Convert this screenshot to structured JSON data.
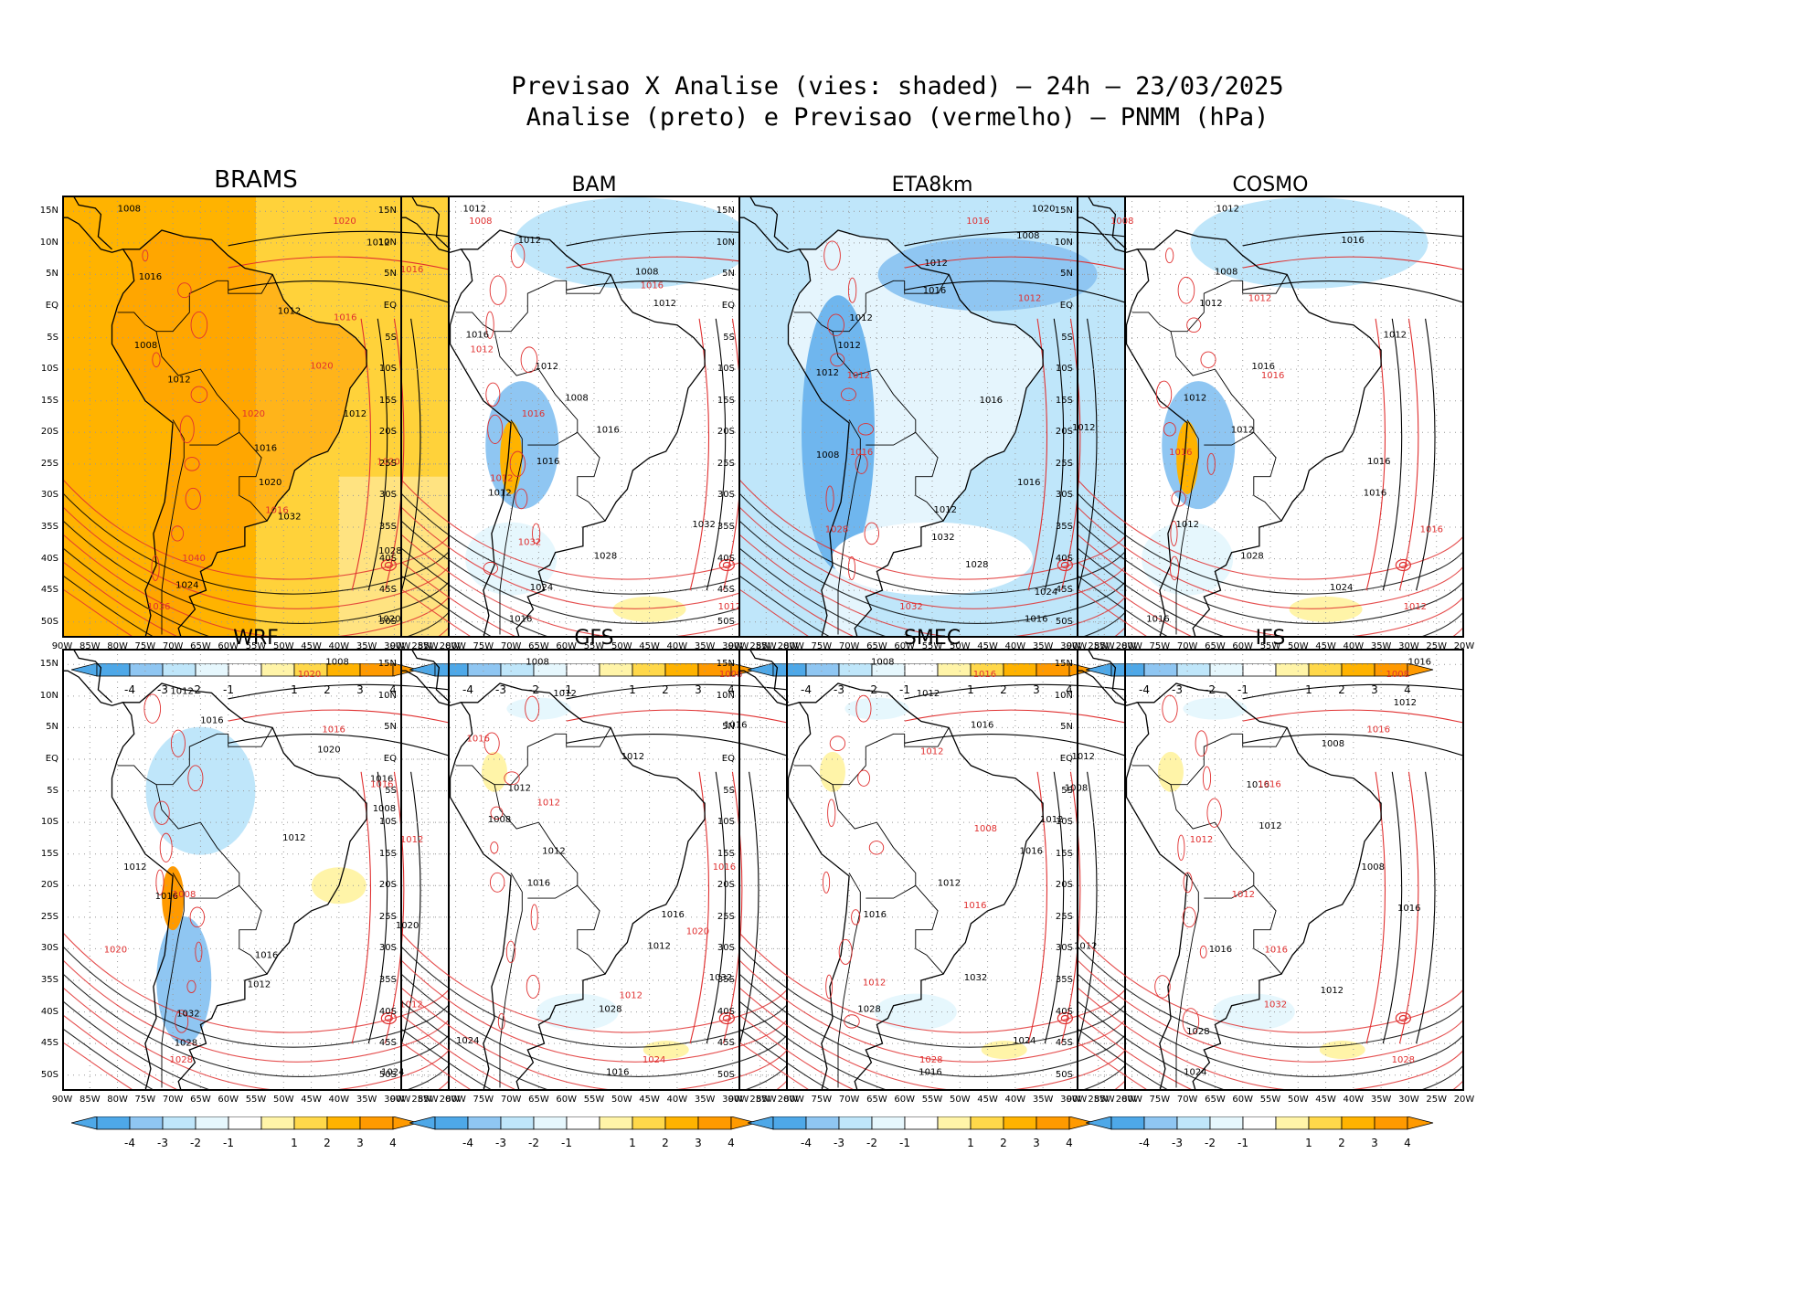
{
  "figure": {
    "title_line1": "Previsao X Analise (vies: shaded) – 24h – 23/03/2025",
    "title_line2": "Analise (preto) e Previsao (vermelho) – PNMM (hPa)"
  },
  "axes": {
    "lat_labels": [
      "15N",
      "10N",
      "5N",
      "EQ",
      "5S",
      "10S",
      "15S",
      "20S",
      "25S",
      "30S",
      "35S",
      "40S",
      "45S",
      "50S"
    ],
    "lon_labels": [
      "90W",
      "85W",
      "80W",
      "75W",
      "70W",
      "65W",
      "60W",
      "55W",
      "50W",
      "45W",
      "40W",
      "35W",
      "30W",
      "25W",
      "20W"
    ]
  },
  "colorbar": {
    "labels": [
      "-4",
      "-3",
      "-2",
      "-1",
      "1",
      "2",
      "3",
      "4"
    ],
    "colors": [
      "#4ea8e8",
      "#8fc6f2",
      "#bfe6fa",
      "#e6f7fd",
      "#ffffff",
      "#fff4a8",
      "#ffd84a",
      "#ffb300",
      "#ff9a00"
    ]
  },
  "colors": {
    "analysis": "#000000",
    "forecast": "#e03030",
    "background": "#ffffff"
  },
  "panels": [
    {
      "name": "BRAMS",
      "bias": "warm",
      "labels_black": [
        "1008",
        "1012",
        "1016",
        "1012",
        "1008",
        "1012",
        "1012",
        "1016",
        "1020",
        "1032",
        "1028",
        "1024",
        "1020"
      ],
      "labels_red": [
        "1020",
        "1016",
        "1016",
        "1020",
        "1020",
        "1020",
        "1016",
        "1040",
        "1036"
      ]
    },
    {
      "name": "BAM",
      "bias": "cool",
      "labels_black": [
        "1012",
        "1012",
        "1008",
        "1012",
        "1016",
        "1012",
        "1008",
        "1016",
        "1016",
        "1012",
        "1032",
        "1028",
        "1024",
        "1016"
      ],
      "labels_red": [
        "1008",
        "1016",
        "1012",
        "1016",
        "1012",
        "1032",
        "1012"
      ]
    },
    {
      "name": "ETA8km",
      "bias": "strong-cool",
      "labels_black": [
        "1020",
        "1008",
        "1012",
        "1016",
        "1012",
        "1012",
        "1012",
        "1016",
        "1012",
        "1008",
        "1016",
        "1012",
        "1032",
        "1028",
        "1024",
        "1016"
      ],
      "labels_red": [
        "1016",
        "1012",
        "1012",
        "1016",
        "1028",
        "1032"
      ]
    },
    {
      "name": "COSMO",
      "bias": "cool",
      "labels_black": [
        "1012",
        "1016",
        "1008",
        "1012",
        "1012",
        "1016",
        "1012",
        "1012",
        "1016",
        "1016",
        "1012",
        "1028",
        "1024",
        "1016"
      ],
      "labels_red": [
        "1008",
        "1012",
        "1016",
        "1016",
        "1016",
        "1012"
      ]
    },
    {
      "name": "WRF",
      "bias": "mixed",
      "labels_black": [
        "1008",
        "1012",
        "1016",
        "1020",
        "1016",
        "1008",
        "1012",
        "1012",
        "1016",
        "1020",
        "1016",
        "1012",
        "1032",
        "1028",
        "1024"
      ],
      "labels_red": [
        "1020",
        "1016",
        "1016",
        "1012",
        "1008",
        "1020",
        "1012",
        "1028"
      ]
    },
    {
      "name": "GFS",
      "bias": "neutral",
      "labels_black": [
        "1008",
        "1012",
        "1016",
        "1012",
        "1012",
        "1008",
        "1012",
        "1016",
        "1016",
        "1012",
        "1032",
        "1028",
        "1024",
        "1016"
      ],
      "labels_red": [
        "1008",
        "1016",
        "1012",
        "1016",
        "1020",
        "1012",
        "1024"
      ]
    },
    {
      "name": "SMEC",
      "bias": "neutral",
      "labels_black": [
        "1008",
        "1012",
        "1016",
        "1012",
        "1008",
        "1012",
        "1016",
        "1012",
        "1016",
        "1012",
        "1032",
        "1028",
        "1024",
        "1016"
      ],
      "labels_red": [
        "1016",
        "1012",
        "1008",
        "1016",
        "1012",
        "1028"
      ]
    },
    {
      "name": "IFS",
      "bias": "neutral",
      "labels_black": [
        "1016",
        "1012",
        "1008",
        "1016",
        "1012",
        "1008",
        "1016",
        "1016",
        "1012",
        "1028",
        "1024"
      ],
      "labels_red": [
        "1008",
        "1016",
        "1016",
        "1012",
        "1012",
        "1016",
        "1032",
        "1028"
      ]
    }
  ]
}
